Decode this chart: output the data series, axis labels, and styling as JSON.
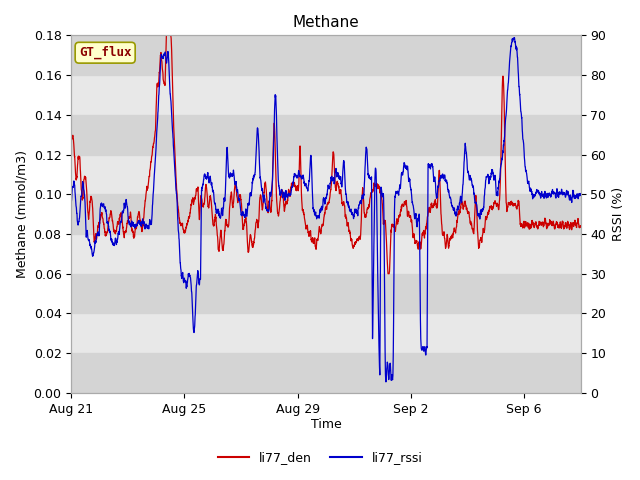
{
  "title": "Methane",
  "xlabel": "Time",
  "ylabel_left": "Methane (mmol/m3)",
  "ylabel_right": "RSSI (%)",
  "annotation": "GT_flux",
  "left_ylim": [
    0.0,
    0.18
  ],
  "right_ylim": [
    0,
    90
  ],
  "left_yticks": [
    0.0,
    0.02,
    0.04,
    0.06,
    0.08,
    0.1,
    0.12,
    0.14,
    0.16,
    0.18
  ],
  "right_yticks": [
    0,
    10,
    20,
    30,
    40,
    50,
    60,
    70,
    80,
    90
  ],
  "xtick_labels": [
    "Aug 21",
    "Aug 25",
    "Aug 29",
    "Sep 2",
    "Sep 6"
  ],
  "line1_color": "#cc0000",
  "line2_color": "#0000cc",
  "legend_labels": [
    "li77_den",
    "li77_rssi"
  ],
  "bg_color": "#ffffff",
  "band_dark_color": "#d4d4d4",
  "band_light_color": "#e8e8e8",
  "title_fontsize": 11,
  "axis_fontsize": 9,
  "tick_fontsize": 9,
  "legend_fontsize": 9
}
